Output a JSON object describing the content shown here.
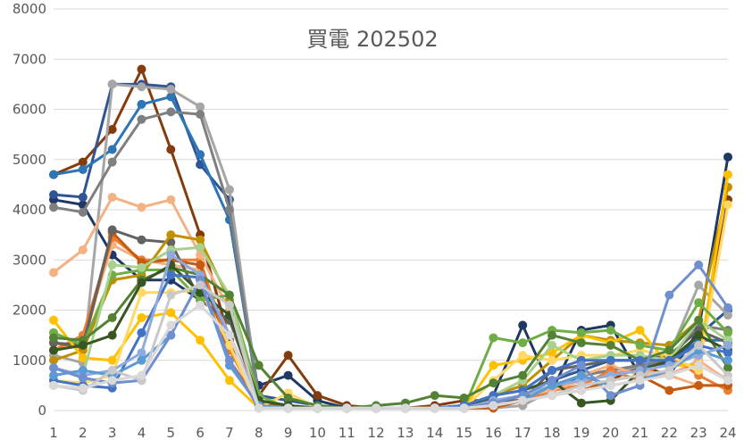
{
  "chart_data": {
    "type": "line",
    "title": "買電 202502",
    "xlabel": "",
    "ylabel": "",
    "x": [
      1,
      2,
      3,
      4,
      5,
      6,
      7,
      8,
      9,
      10,
      11,
      12,
      13,
      14,
      15,
      16,
      17,
      18,
      19,
      20,
      21,
      22,
      23,
      24
    ],
    "ylim": [
      0,
      8000
    ],
    "y_ticks": [
      0,
      1000,
      2000,
      3000,
      4000,
      5000,
      6000,
      7000,
      8000
    ],
    "grid": true,
    "legend": "none",
    "series": [
      {
        "color": "#1F3864",
        "values": [
          4200,
          4100,
          3100,
          2600,
          2600,
          2200,
          1800,
          500,
          700,
          200,
          50,
          50,
          50,
          50,
          100,
          300,
          1700,
          400,
          1600,
          1700,
          700,
          700,
          1600,
          5050
        ]
      },
      {
        "color": "#843C0C",
        "values": [
          4700,
          4950,
          5600,
          6800,
          5200,
          3500,
          1400,
          300,
          1100,
          300,
          100,
          50,
          50,
          100,
          200,
          200,
          200,
          400,
          500,
          600,
          900,
          700,
          1000,
          4200
        ]
      },
      {
        "color": "#2F5597",
        "values": [
          4300,
          4250,
          6500,
          6500,
          6450,
          4900,
          4200,
          300,
          200,
          100,
          50,
          50,
          50,
          50,
          100,
          200,
          300,
          600,
          800,
          1000,
          1000,
          900,
          1500,
          2000
        ]
      },
      {
        "color": "#2E75B6",
        "values": [
          4700,
          4800,
          5200,
          6100,
          6250,
          5100,
          3800,
          200,
          100,
          50,
          50,
          50,
          50,
          50,
          50,
          100,
          200,
          400,
          700,
          800,
          900,
          900,
          1400,
          1400
        ]
      },
      {
        "color": "#A6A6A6",
        "values": [
          1100,
          950,
          6500,
          6450,
          6400,
          6050,
          4400,
          200,
          100,
          50,
          50,
          50,
          50,
          50,
          50,
          50,
          100,
          400,
          600,
          700,
          900,
          1100,
          2500,
          1900
        ]
      },
      {
        "color": "#7F7F7F",
        "values": [
          4050,
          3950,
          4950,
          5800,
          5950,
          5900,
          4000,
          200,
          100,
          50,
          50,
          50,
          50,
          50,
          50,
          100,
          200,
          500,
          700,
          800,
          900,
          1000,
          1700,
          1600
        ]
      },
      {
        "color": "#F4B183",
        "values": [
          1200,
          1450,
          3300,
          3000,
          2900,
          2800,
          1500,
          200,
          100,
          50,
          50,
          50,
          50,
          50,
          50,
          100,
          300,
          500,
          700,
          900,
          700,
          700,
          1000,
          600
        ]
      },
      {
        "color": "#ED7D31",
        "values": [
          1200,
          1500,
          3450,
          3000,
          3000,
          3000,
          1200,
          150,
          100,
          50,
          50,
          50,
          50,
          50,
          50,
          100,
          200,
          400,
          500,
          800,
          600,
          1100,
          700,
          400
        ]
      },
      {
        "color": "#F4B183",
        "values": [
          2750,
          3200,
          4250,
          4050,
          4200,
          3100,
          2000,
          150,
          100,
          50,
          50,
          50,
          50,
          50,
          50,
          100,
          300,
          400,
          600,
          700,
          800,
          700,
          500,
          500
        ]
      },
      {
        "color": "#C55A11",
        "values": [
          1350,
          1250,
          3550,
          2950,
          3000,
          2900,
          1000,
          150,
          50,
          50,
          50,
          50,
          50,
          50,
          50,
          50,
          200,
          300,
          400,
          600,
          700,
          400,
          500,
          500
        ]
      },
      {
        "color": "#636363",
        "values": [
          1350,
          1300,
          3600,
          3400,
          3350,
          2200,
          1800,
          200,
          100,
          50,
          50,
          50,
          50,
          50,
          50,
          200,
          200,
          800,
          900,
          1000,
          1000,
          1100,
          1600,
          1350
        ]
      },
      {
        "color": "#BF9000",
        "values": [
          1000,
          1200,
          2600,
          2700,
          3500,
          3400,
          2200,
          100,
          50,
          50,
          50,
          50,
          50,
          50,
          50,
          300,
          500,
          1000,
          1500,
          1400,
          1350,
          1300,
          1800,
          4450
        ]
      },
      {
        "color": "#FFC000",
        "values": [
          1800,
          1050,
          1000,
          1850,
          1950,
          1400,
          600,
          50,
          50,
          50,
          50,
          50,
          50,
          50,
          50,
          900,
          1000,
          1150,
          1500,
          1350,
          1600,
          900,
          900,
          4700
        ]
      },
      {
        "color": "#FFD966",
        "values": [
          600,
          550,
          700,
          2350,
          2350,
          2400,
          1300,
          50,
          350,
          50,
          50,
          50,
          50,
          50,
          50,
          600,
          1100,
          1000,
          1100,
          1100,
          1200,
          1100,
          800,
          4100
        ]
      },
      {
        "color": "#70AD47",
        "values": [
          1550,
          1300,
          2700,
          2800,
          2800,
          2200,
          2300,
          300,
          50,
          50,
          50,
          50,
          50,
          50,
          50,
          1450,
          1350,
          1600,
          1550,
          1600,
          1300,
          1200,
          2150,
          1550
        ]
      },
      {
        "color": "#A9D18E",
        "values": [
          850,
          700,
          2900,
          2850,
          3200,
          3250,
          2300,
          100,
          50,
          50,
          50,
          50,
          50,
          50,
          50,
          300,
          600,
          1300,
          1000,
          1100,
          1100,
          1000,
          1800,
          1400
        ]
      },
      {
        "color": "#548235",
        "values": [
          1450,
          1400,
          1850,
          2600,
          2850,
          2700,
          2300,
          900,
          250,
          100,
          50,
          100,
          150,
          300,
          250,
          550,
          700,
          1500,
          1350,
          1300,
          1000,
          1200,
          1800,
          850
        ]
      },
      {
        "color": "#375623",
        "values": [
          1200,
          1300,
          1500,
          2550,
          2900,
          2350,
          1900,
          200,
          100,
          50,
          50,
          50,
          50,
          50,
          50,
          300,
          400,
          600,
          150,
          200,
          800,
          1000,
          1500,
          1200
        ]
      },
      {
        "color": "#4472C4",
        "values": [
          600,
          500,
          450,
          1550,
          2700,
          2650,
          1500,
          100,
          50,
          50,
          50,
          50,
          50,
          50,
          100,
          300,
          400,
          800,
          1000,
          1000,
          1000,
          1000,
          1300,
          1150
        ]
      },
      {
        "color": "#8FAADC",
        "values": [
          850,
          700,
          800,
          1150,
          3100,
          2700,
          1500,
          100,
          50,
          50,
          50,
          50,
          50,
          50,
          50,
          200,
          300,
          500,
          600,
          700,
          800,
          900,
          1100,
          1300
        ]
      },
      {
        "color": "#5B9BD5",
        "values": [
          700,
          800,
          700,
          1000,
          1500,
          2600,
          900,
          100,
          50,
          50,
          50,
          50,
          50,
          50,
          50,
          100,
          200,
          500,
          700,
          500,
          600,
          800,
          1200,
          1000
        ]
      },
      {
        "color": "#6F8FCF",
        "values": [
          850,
          650,
          550,
          600,
          1500,
          2600,
          1000,
          50,
          50,
          50,
          50,
          50,
          50,
          50,
          50,
          150,
          300,
          600,
          900,
          300,
          500,
          2300,
          2900,
          2050
        ]
      },
      {
        "color": "#C9C9C9",
        "values": [
          500,
          400,
          800,
          600,
          2300,
          2500,
          2100,
          50,
          50,
          50,
          50,
          50,
          50,
          50,
          50,
          100,
          200,
          300,
          500,
          600,
          700,
          800,
          1300,
          700
        ]
      },
      {
        "color": "#D9D9D9",
        "values": [
          500,
          450,
          600,
          700,
          1700,
          2100,
          1500,
          50,
          50,
          50,
          50,
          50,
          50,
          50,
          50,
          100,
          200,
          300,
          400,
          500,
          600,
          700,
          900,
          600
        ]
      }
    ]
  }
}
